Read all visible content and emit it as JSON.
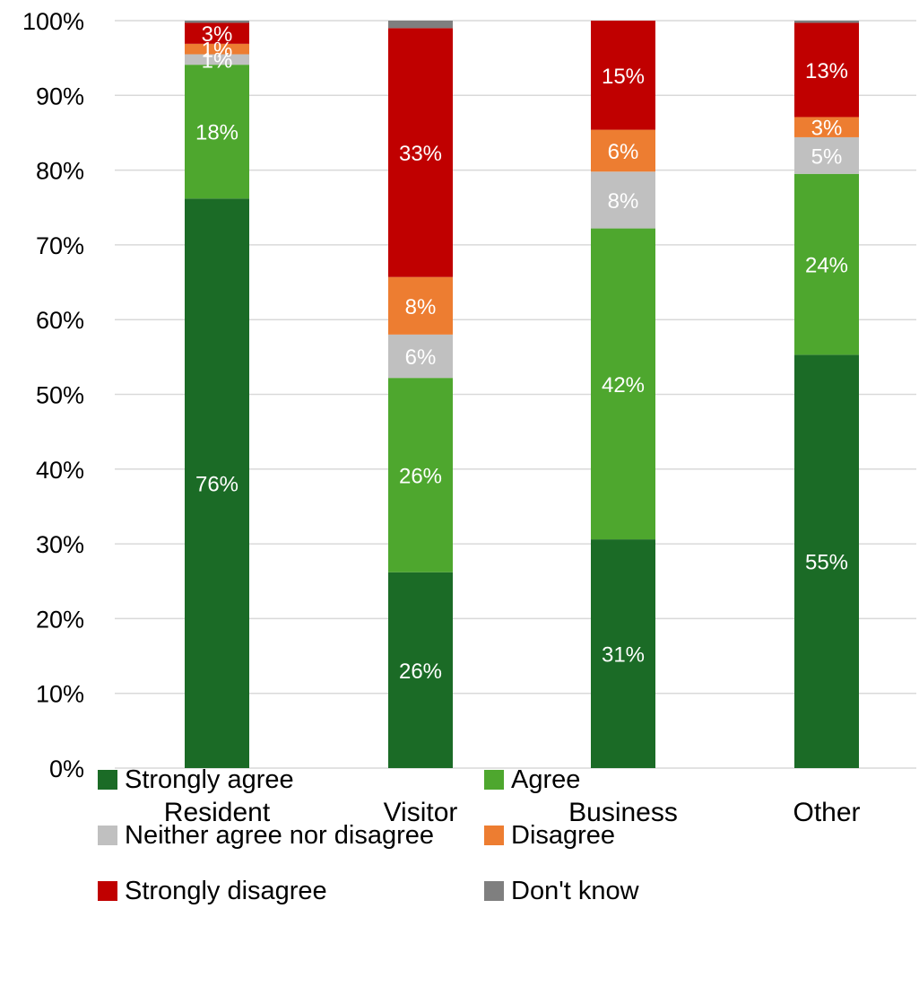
{
  "chart_data": {
    "type": "bar",
    "stacked": "percent",
    "categories": [
      "Resident",
      "Visitor",
      "Business",
      "Other"
    ],
    "ylim": [
      0,
      100
    ],
    "yticks": [
      "0%",
      "10%",
      "20%",
      "30%",
      "40%",
      "50%",
      "60%",
      "70%",
      "80%",
      "90%",
      "100%"
    ],
    "grid": true,
    "legend_position": "bottom",
    "series": [
      {
        "name": "Strongly agree",
        "color": "#1b6b26",
        "values": [
          76.2,
          26.2,
          30.6,
          55.3
        ],
        "labels": [
          "76%",
          "26%",
          "31%",
          "55%"
        ]
      },
      {
        "name": "Agree",
        "color": "#4ea72e",
        "values": [
          17.9,
          26.0,
          41.6,
          24.2
        ],
        "labels": [
          "18%",
          "26%",
          "42%",
          "24%"
        ]
      },
      {
        "name": "Neither agree nor disagree",
        "color": "#c0c0c0",
        "values": [
          1.4,
          5.8,
          7.6,
          4.9
        ],
        "labels": [
          "1%",
          "6%",
          "8%",
          "5%"
        ]
      },
      {
        "name": "Disagree",
        "color": "#ed7d31",
        "values": [
          1.4,
          7.7,
          5.6,
          2.7
        ],
        "labels": [
          "1%",
          "8%",
          "6%",
          "3%"
        ]
      },
      {
        "name": "Strongly disagree",
        "color": "#c00000",
        "values": [
          2.8,
          33.3,
          14.6,
          12.6
        ],
        "labels": [
          "3%",
          "33%",
          "15%",
          "13%"
        ]
      },
      {
        "name": "Don't know",
        "color": "#7f7f7f",
        "values": [
          0.3,
          1.0,
          0.0,
          0.3
        ],
        "labels": [
          "",
          "",
          "",
          ""
        ]
      }
    ]
  }
}
